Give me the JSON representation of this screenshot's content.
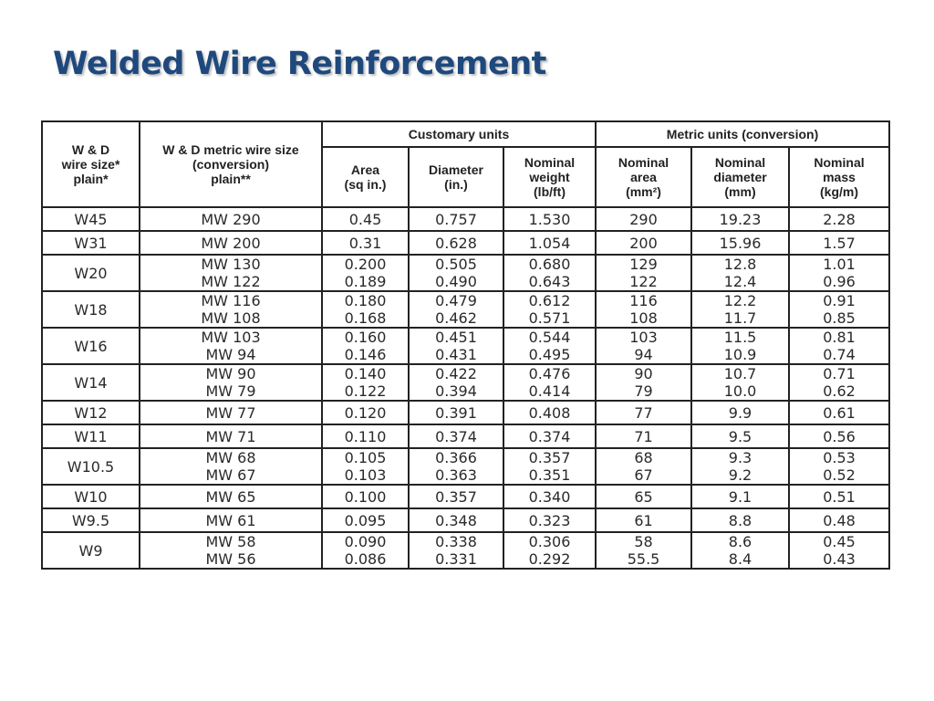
{
  "title": "Welded Wire Reinforcement",
  "table": {
    "group_headers": {
      "customary": "Customary units",
      "metric": "Metric units (conversion)"
    },
    "column_headers": {
      "wd_size": [
        "W & D",
        "wire size*",
        "plain*"
      ],
      "wd_metric": [
        "W & D metric wire size",
        "(conversion)",
        "plain**"
      ],
      "area": [
        "Area",
        "(sq in.)"
      ],
      "diameter": [
        "Diameter",
        "(in.)"
      ],
      "weight": [
        "Nominal",
        "weight",
        "(lb/ft)"
      ],
      "nominal_area": [
        "Nominal",
        "area",
        "(mm²)"
      ],
      "nominal_diameter": [
        "Nominal",
        "diameter",
        "(mm)"
      ],
      "nominal_mass": [
        "Nominal",
        "mass",
        "(kg/m)"
      ]
    },
    "rows": [
      {
        "size": "W45",
        "metric": [
          "MW 290"
        ],
        "area": [
          "0.45"
        ],
        "diameter": [
          "0.757"
        ],
        "weight": [
          "1.530"
        ],
        "mm2": [
          "290"
        ],
        "mm": [
          "19.23"
        ],
        "kgm": [
          "2.28"
        ]
      },
      {
        "size": "W31",
        "metric": [
          "MW 200"
        ],
        "area": [
          "0.31"
        ],
        "diameter": [
          "0.628"
        ],
        "weight": [
          "1.054"
        ],
        "mm2": [
          "200"
        ],
        "mm": [
          "15.96"
        ],
        "kgm": [
          "1.57"
        ]
      },
      {
        "size": "W20",
        "metric": [
          "MW 130",
          "MW 122"
        ],
        "area": [
          "0.200",
          "0.189"
        ],
        "diameter": [
          "0.505",
          "0.490"
        ],
        "weight": [
          "0.680",
          "0.643"
        ],
        "mm2": [
          "129",
          "122"
        ],
        "mm": [
          "12.8",
          "12.4"
        ],
        "kgm": [
          "1.01",
          "0.96"
        ]
      },
      {
        "size": "W18",
        "metric": [
          "MW 116",
          "MW 108"
        ],
        "area": [
          "0.180",
          "0.168"
        ],
        "diameter": [
          "0.479",
          "0.462"
        ],
        "weight": [
          "0.612",
          "0.571"
        ],
        "mm2": [
          "116",
          "108"
        ],
        "mm": [
          "12.2",
          "11.7"
        ],
        "kgm": [
          "0.91",
          "0.85"
        ]
      },
      {
        "size": "W16",
        "metric": [
          "MW 103",
          "MW 94"
        ],
        "area": [
          "0.160",
          "0.146"
        ],
        "diameter": [
          "0.451",
          "0.431"
        ],
        "weight": [
          "0.544",
          "0.495"
        ],
        "mm2": [
          "103",
          "94"
        ],
        "mm": [
          "11.5",
          "10.9"
        ],
        "kgm": [
          "0.81",
          "0.74"
        ]
      },
      {
        "size": "W14",
        "metric": [
          "MW 90",
          "MW 79"
        ],
        "area": [
          "0.140",
          "0.122"
        ],
        "diameter": [
          "0.422",
          "0.394"
        ],
        "weight": [
          "0.476",
          "0.414"
        ],
        "mm2": [
          "90",
          "79"
        ],
        "mm": [
          "10.7",
          "10.0"
        ],
        "kgm": [
          "0.71",
          "0.62"
        ]
      },
      {
        "size": "W12",
        "metric": [
          "MW 77"
        ],
        "area": [
          "0.120"
        ],
        "diameter": [
          "0.391"
        ],
        "weight": [
          "0.408"
        ],
        "mm2": [
          "77"
        ],
        "mm": [
          "9.9"
        ],
        "kgm": [
          "0.61"
        ]
      },
      {
        "size": "W11",
        "metric": [
          "MW 71"
        ],
        "area": [
          "0.110"
        ],
        "diameter": [
          "0.374"
        ],
        "weight": [
          "0.374"
        ],
        "mm2": [
          "71"
        ],
        "mm": [
          "9.5"
        ],
        "kgm": [
          "0.56"
        ]
      },
      {
        "size": "W10.5",
        "metric": [
          "MW 68",
          "MW 67"
        ],
        "area": [
          "0.105",
          "0.103"
        ],
        "diameter": [
          "0.366",
          "0.363"
        ],
        "weight": [
          "0.357",
          "0.351"
        ],
        "mm2": [
          "68",
          "67"
        ],
        "mm": [
          "9.3",
          "9.2"
        ],
        "kgm": [
          "0.53",
          "0.52"
        ]
      },
      {
        "size": "W10",
        "metric": [
          "MW 65"
        ],
        "area": [
          "0.100"
        ],
        "diameter": [
          "0.357"
        ],
        "weight": [
          "0.340"
        ],
        "mm2": [
          "65"
        ],
        "mm": [
          "9.1"
        ],
        "kgm": [
          "0.51"
        ]
      },
      {
        "size": "W9.5",
        "metric": [
          "MW 61"
        ],
        "area": [
          "0.095"
        ],
        "diameter": [
          "0.348"
        ],
        "weight": [
          "0.323"
        ],
        "mm2": [
          "61"
        ],
        "mm": [
          "8.8"
        ],
        "kgm": [
          "0.48"
        ]
      },
      {
        "size": "W9",
        "metric": [
          "MW 58",
          "MW 56"
        ],
        "area": [
          "0.090",
          "0.086"
        ],
        "diameter": [
          "0.338",
          "0.331"
        ],
        "weight": [
          "0.306",
          "0.292"
        ],
        "mm2": [
          "58",
          "55.5"
        ],
        "mm": [
          "8.6",
          "8.4"
        ],
        "kgm": [
          "0.45",
          "0.43"
        ]
      }
    ]
  }
}
